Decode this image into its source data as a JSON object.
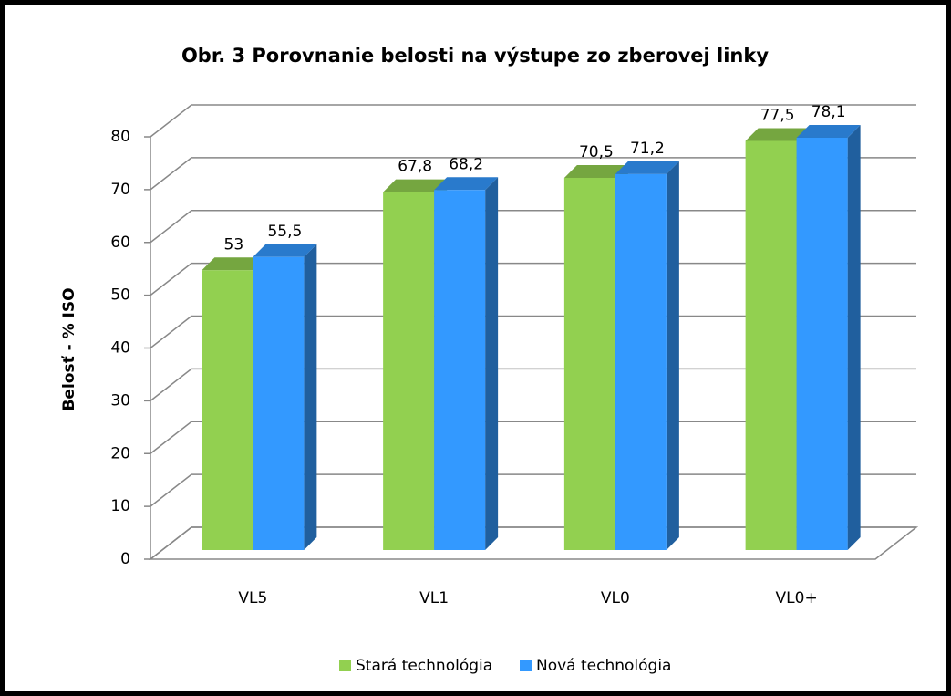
{
  "chart_data": {
    "type": "bar3d",
    "title": "Obr. 3 Porovnanie belosti na výstupe zo zberovej linky",
    "y_label": "Belosť - % ISO",
    "categories": [
      "VL5",
      "VL1",
      "VL0",
      "VL0+"
    ],
    "series": [
      {
        "name": "Stará technológia",
        "color": "#92d050",
        "values": [
          53,
          67.8,
          70.5,
          77.5
        ],
        "value_labels": [
          "53",
          "67,8",
          "70,5",
          "77,5"
        ]
      },
      {
        "name": "Nová technológia",
        "color": "#3399ff",
        "values": [
          55.5,
          68.2,
          71.2,
          78.1
        ],
        "value_labels": [
          "55,5",
          "68,2",
          "71,2",
          "78,1"
        ]
      }
    ],
    "ylim": [
      0,
      80
    ],
    "yticks": [
      0,
      10,
      20,
      30,
      40,
      50,
      60,
      70,
      80
    ],
    "grid": true,
    "legend": "bottom"
  }
}
